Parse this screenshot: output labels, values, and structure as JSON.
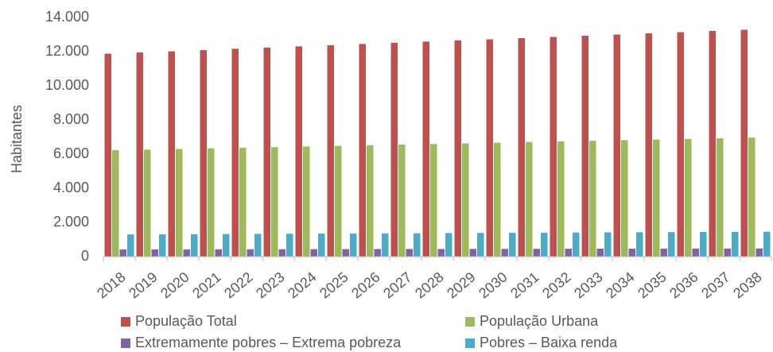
{
  "chart_data": {
    "type": "bar",
    "y_label": "Habitantes",
    "categories": [
      "2018",
      "2019",
      "2020",
      "2021",
      "2022",
      "2023",
      "2024",
      "2025",
      "2026",
      "2027",
      "2028",
      "2029",
      "2030",
      "2031",
      "2032",
      "2033",
      "2034",
      "2035",
      "2036",
      "2037",
      "2038"
    ],
    "series": [
      {
        "name": "População Total",
        "color": "#c0504d",
        "values": [
          11880,
          11950,
          12020,
          12090,
          12170,
          12240,
          12310,
          12380,
          12450,
          12520,
          12590,
          12660,
          12720,
          12790,
          12860,
          12930,
          13000,
          13070,
          13140,
          13210,
          13280
        ]
      },
      {
        "name": "População Urbana",
        "color": "#9bbb59",
        "values": [
          6230,
          6265,
          6300,
          6340,
          6375,
          6410,
          6450,
          6485,
          6520,
          6560,
          6595,
          6630,
          6670,
          6710,
          6745,
          6780,
          6820,
          6855,
          6890,
          6930,
          6970
        ]
      },
      {
        "name": "Extremamente pobres – Extrema pobreza",
        "color": "#8064a2",
        "values": [
          420,
          423,
          426,
          429,
          432,
          435,
          438,
          441,
          444,
          447,
          450,
          453,
          456,
          459,
          462,
          465,
          468,
          471,
          474,
          477,
          480
        ]
      },
      {
        "name": "Pobres – Baixa renda",
        "color": "#4bacc6",
        "values": [
          1300,
          1308,
          1316,
          1324,
          1332,
          1340,
          1348,
          1356,
          1364,
          1372,
          1380,
          1388,
          1396,
          1404,
          1412,
          1420,
          1428,
          1436,
          1444,
          1452,
          1460
        ]
      }
    ],
    "ylim": [
      0,
      14000
    ],
    "yticks": [
      0,
      {
        "value": 2000,
        "label": "2.000"
      },
      {
        "value": 4000,
        "label": "4.000"
      },
      {
        "value": 6000,
        "label": "6.000"
      },
      {
        "value": 8000,
        "label": "8.000"
      },
      {
        "value": 10000,
        "label": "10.000"
      },
      {
        "value": 12000,
        "label": "12.000"
      },
      {
        "value": 14000,
        "label": "14.000"
      }
    ],
    "grid": false,
    "legend": "bottom"
  }
}
